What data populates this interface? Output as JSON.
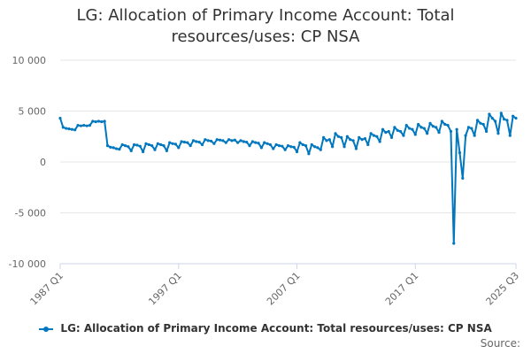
{
  "chart_data": {
    "type": "line",
    "title_lines": [
      "LG: Allocation of Primary Income Account: Total",
      "resources/uses: CP NSA"
    ],
    "ylim": [
      -10000,
      10000
    ],
    "y_ticks": [
      10000,
      5000,
      0,
      -5000,
      -10000
    ],
    "y_tick_labels": [
      "10 000",
      "5 000",
      "0",
      "-5 000",
      "-10 000"
    ],
    "x_ticks": [
      1987,
      1997,
      2007,
      2017,
      2025.5
    ],
    "x_tick_labels": [
      "1987 Q1",
      "1997 Q1",
      "2007 Q1",
      "2017 Q1",
      "2025 Q3"
    ],
    "xlim": [
      1987,
      2025.5
    ],
    "gridlines": true,
    "legend_position": "bottom",
    "series": [
      {
        "name": "LG: Allocation of Primary Income Account: Total resources/uses: CP NSA",
        "color": "#0077be",
        "points": [
          [
            1987.0,
            4300
          ],
          [
            1987.25,
            3400
          ],
          [
            1987.5,
            3300
          ],
          [
            1987.75,
            3250
          ],
          [
            1988.0,
            3200
          ],
          [
            1988.25,
            3150
          ],
          [
            1988.5,
            3600
          ],
          [
            1988.75,
            3550
          ],
          [
            1989.0,
            3600
          ],
          [
            1989.25,
            3550
          ],
          [
            1989.5,
            3600
          ],
          [
            1989.75,
            4000
          ],
          [
            1990.0,
            3950
          ],
          [
            1990.25,
            4000
          ],
          [
            1990.5,
            3950
          ],
          [
            1990.75,
            4000
          ],
          [
            1991.0,
            1600
          ],
          [
            1991.25,
            1450
          ],
          [
            1991.5,
            1400
          ],
          [
            1991.75,
            1300
          ],
          [
            1992.0,
            1250
          ],
          [
            1992.25,
            1700
          ],
          [
            1992.5,
            1600
          ],
          [
            1992.75,
            1500
          ],
          [
            1993.0,
            1100
          ],
          [
            1993.25,
            1700
          ],
          [
            1993.5,
            1650
          ],
          [
            1993.75,
            1550
          ],
          [
            1994.0,
            1000
          ],
          [
            1994.25,
            1800
          ],
          [
            1994.5,
            1700
          ],
          [
            1994.75,
            1600
          ],
          [
            1995.0,
            1200
          ],
          [
            1995.25,
            1800
          ],
          [
            1995.5,
            1700
          ],
          [
            1995.75,
            1600
          ],
          [
            1996.0,
            1100
          ],
          [
            1996.25,
            1900
          ],
          [
            1996.5,
            1800
          ],
          [
            1996.75,
            1750
          ],
          [
            1997.0,
            1400
          ],
          [
            1997.25,
            2000
          ],
          [
            1997.5,
            1950
          ],
          [
            1997.75,
            1900
          ],
          [
            1998.0,
            1600
          ],
          [
            1998.25,
            2100
          ],
          [
            1998.5,
            2000
          ],
          [
            1998.75,
            1950
          ],
          [
            1999.0,
            1700
          ],
          [
            1999.25,
            2200
          ],
          [
            1999.5,
            2100
          ],
          [
            1999.75,
            2050
          ],
          [
            2000.0,
            1800
          ],
          [
            2000.25,
            2200
          ],
          [
            2000.5,
            2150
          ],
          [
            2000.75,
            2100
          ],
          [
            2001.0,
            1900
          ],
          [
            2001.25,
            2200
          ],
          [
            2001.5,
            2100
          ],
          [
            2001.75,
            2150
          ],
          [
            2002.0,
            1900
          ],
          [
            2002.25,
            2100
          ],
          [
            2002.5,
            2000
          ],
          [
            2002.75,
            1950
          ],
          [
            2003.0,
            1600
          ],
          [
            2003.25,
            2000
          ],
          [
            2003.5,
            1900
          ],
          [
            2003.75,
            1850
          ],
          [
            2004.0,
            1400
          ],
          [
            2004.25,
            1900
          ],
          [
            2004.5,
            1800
          ],
          [
            2004.75,
            1700
          ],
          [
            2005.0,
            1300
          ],
          [
            2005.25,
            1700
          ],
          [
            2005.5,
            1600
          ],
          [
            2005.75,
            1550
          ],
          [
            2006.0,
            1200
          ],
          [
            2006.25,
            1600
          ],
          [
            2006.5,
            1500
          ],
          [
            2006.75,
            1450
          ],
          [
            2007.0,
            1000
          ],
          [
            2007.25,
            1900
          ],
          [
            2007.5,
            1700
          ],
          [
            2007.75,
            1600
          ],
          [
            2008.0,
            800
          ],
          [
            2008.25,
            1700
          ],
          [
            2008.5,
            1500
          ],
          [
            2008.75,
            1400
          ],
          [
            2009.0,
            1200
          ],
          [
            2009.25,
            2400
          ],
          [
            2009.5,
            2100
          ],
          [
            2009.75,
            2200
          ],
          [
            2010.0,
            1500
          ],
          [
            2010.25,
            2800
          ],
          [
            2010.5,
            2500
          ],
          [
            2010.75,
            2400
          ],
          [
            2011.0,
            1500
          ],
          [
            2011.25,
            2500
          ],
          [
            2011.5,
            2200
          ],
          [
            2011.75,
            2100
          ],
          [
            2012.0,
            1300
          ],
          [
            2012.25,
            2400
          ],
          [
            2012.5,
            2200
          ],
          [
            2012.75,
            2300
          ],
          [
            2013.0,
            1700
          ],
          [
            2013.25,
            2800
          ],
          [
            2013.5,
            2600
          ],
          [
            2013.75,
            2500
          ],
          [
            2014.0,
            2000
          ],
          [
            2014.25,
            3200
          ],
          [
            2014.5,
            2900
          ],
          [
            2014.75,
            3000
          ],
          [
            2015.0,
            2400
          ],
          [
            2015.25,
            3400
          ],
          [
            2015.5,
            3100
          ],
          [
            2015.75,
            3000
          ],
          [
            2016.0,
            2600
          ],
          [
            2016.25,
            3600
          ],
          [
            2016.5,
            3300
          ],
          [
            2016.75,
            3200
          ],
          [
            2017.0,
            2700
          ],
          [
            2017.25,
            3700
          ],
          [
            2017.5,
            3400
          ],
          [
            2017.75,
            3300
          ],
          [
            2018.0,
            2800
          ],
          [
            2018.25,
            3800
          ],
          [
            2018.5,
            3500
          ],
          [
            2018.75,
            3400
          ],
          [
            2019.0,
            2900
          ],
          [
            2019.25,
            4000
          ],
          [
            2019.5,
            3700
          ],
          [
            2019.75,
            3600
          ],
          [
            2020.0,
            3000
          ],
          [
            2020.25,
            -8000
          ],
          [
            2020.5,
            3200
          ],
          [
            2020.75,
            900
          ],
          [
            2021.0,
            -1600
          ],
          [
            2021.25,
            2600
          ],
          [
            2021.5,
            3400
          ],
          [
            2021.75,
            3300
          ],
          [
            2022.0,
            2600
          ],
          [
            2022.25,
            4100
          ],
          [
            2022.5,
            3800
          ],
          [
            2022.75,
            3700
          ],
          [
            2023.0,
            3000
          ],
          [
            2023.25,
            4700
          ],
          [
            2023.5,
            4300
          ],
          [
            2023.75,
            4000
          ],
          [
            2024.0,
            2800
          ],
          [
            2024.25,
            4800
          ],
          [
            2024.5,
            4200
          ],
          [
            2024.75,
            4100
          ],
          [
            2025.0,
            2600
          ],
          [
            2025.25,
            4500
          ],
          [
            2025.5,
            4300
          ]
        ]
      }
    ]
  },
  "legend": {
    "label": "LG: Allocation of Primary Income Account: Total resources/uses: CP NSA"
  },
  "source": {
    "label": "Source:"
  }
}
